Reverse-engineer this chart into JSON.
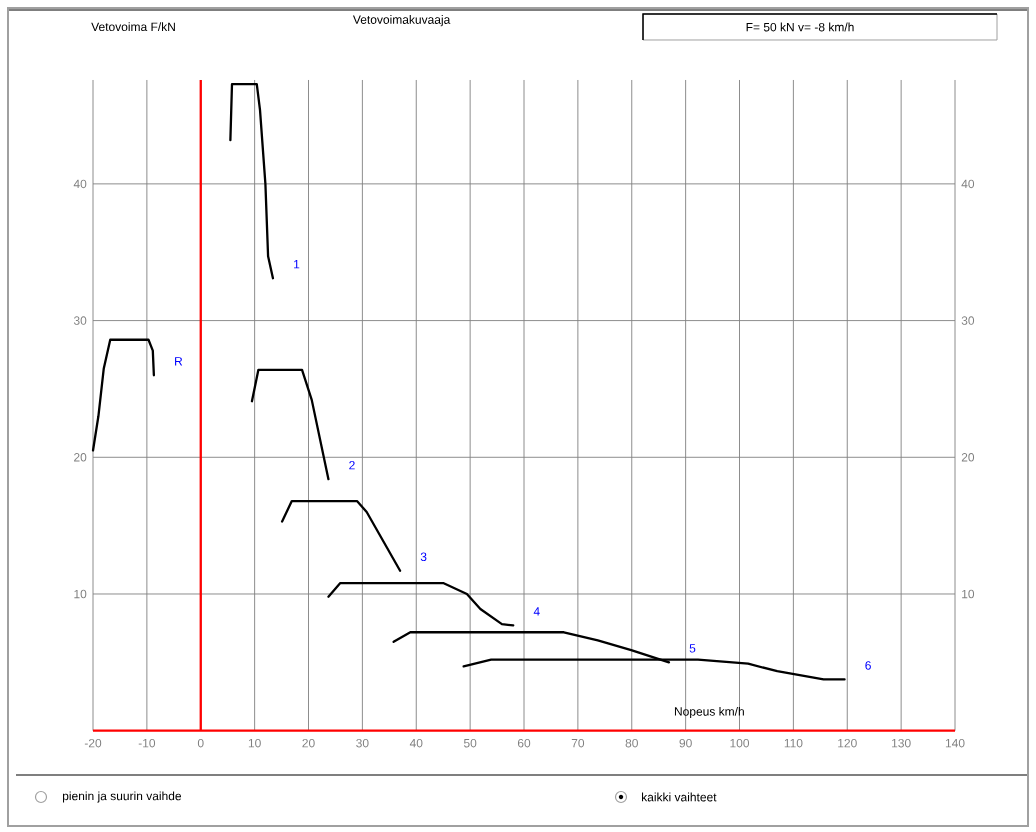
{
  "chart_data": {
    "type": "line",
    "title": "Vetovoimakuvaaja",
    "ylabel": "Vetovoima F/kN",
    "xlabel": "Nopeus km/h",
    "annotations": [
      "F= 50 kN    v= -8 km/h",
      "pienin ja suurin vaihde",
      "kaikki vaihteet"
    ],
    "xlim": [
      -20,
      140
    ],
    "xticks": [
      -20,
      -10,
      0,
      10,
      20,
      30,
      40,
      50,
      60,
      70,
      80,
      90,
      100,
      110,
      120,
      130,
      140
    ],
    "ylim": [
      0,
      47.6
    ],
    "yticks": [
      10,
      20,
      30,
      40
    ],
    "y2lim": [
      0,
      47.6
    ],
    "y2ticks": [
      10,
      20,
      30,
      40
    ],
    "grid": true,
    "marker": "none",
    "line_style": "solid",
    "ref_lines": [
      {
        "axis": "x",
        "value": 0,
        "color": "#ff0000"
      }
    ],
    "series": [
      {
        "name": "R",
        "color": "#000000",
        "x": [
          -20,
          -19,
          -18,
          -16.8,
          -9.7,
          -8.9,
          -8.7
        ],
        "values": [
          20.5,
          23,
          26.5,
          28.6,
          28.6,
          27.8,
          26.0
        ]
      },
      {
        "name": "1",
        "color": "#000000",
        "x": [
          5.5,
          5.8,
          10.4,
          11.0,
          12.0,
          12.5,
          13.4
        ],
        "values": [
          43.2,
          47.3,
          47.3,
          45.4,
          40.0,
          34.7,
          33.1
        ]
      },
      {
        "name": "2",
        "color": "#000000",
        "x": [
          9.5,
          10.7,
          18.8,
          20.6,
          23.7
        ],
        "values": [
          24.1,
          26.4,
          26.4,
          24.2,
          18.4
        ]
      },
      {
        "name": "3",
        "color": "#000000",
        "x": [
          15.1,
          16.9,
          29.0,
          30.8,
          37.0
        ],
        "values": [
          15.3,
          16.8,
          16.8,
          16.0,
          11.7
        ]
      },
      {
        "name": "4",
        "color": "#000000",
        "x": [
          23.7,
          25.9,
          45.0,
          49.4,
          51.9,
          55.9,
          58.0
        ],
        "values": [
          9.8,
          10.8,
          10.8,
          10.0,
          8.9,
          7.8,
          7.7
        ]
      },
      {
        "name": "5",
        "color": "#000000",
        "x": [
          35.8,
          38.9,
          67.4,
          73.7,
          79.9,
          86.9
        ],
        "values": [
          6.5,
          7.2,
          7.2,
          6.6,
          5.9,
          5.0
        ]
      },
      {
        "name": "6",
        "color": "#000000",
        "x": [
          48.8,
          53.9,
          92.3,
          101.6,
          107.0,
          115.6,
          119.5
        ],
        "values": [
          4.7,
          5.2,
          5.2,
          4.9,
          4.35,
          3.75,
          3.75
        ]
      }
    ]
  }
}
